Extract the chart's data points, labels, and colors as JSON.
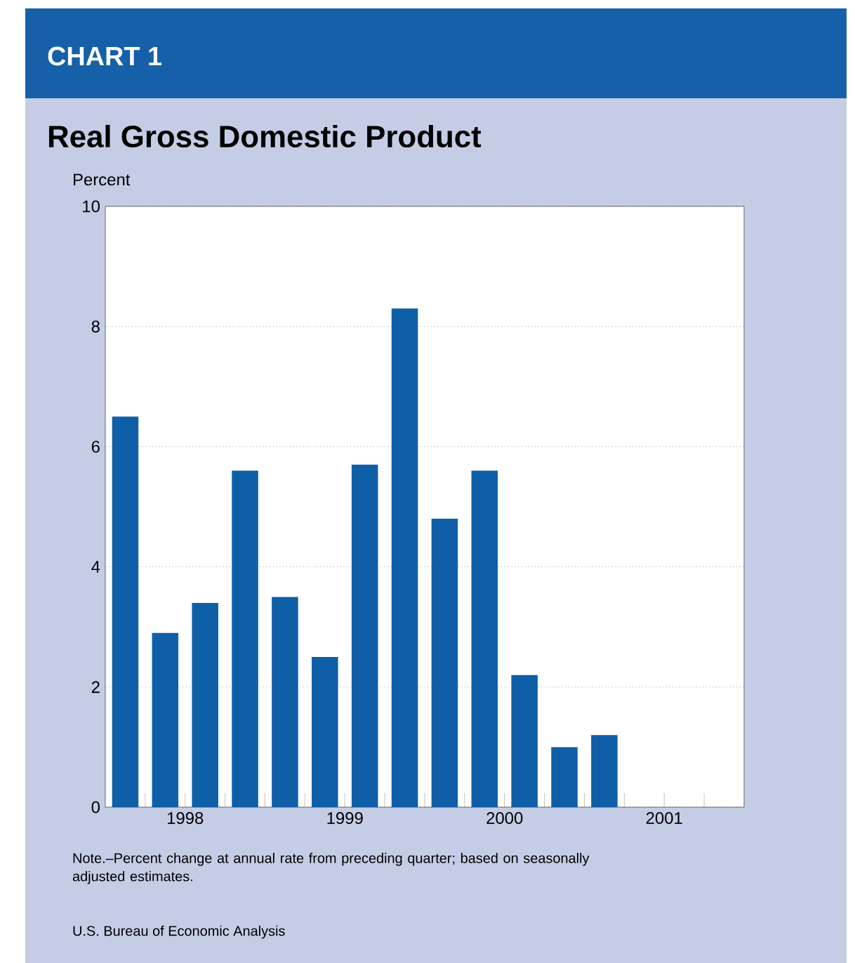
{
  "chart_data": {
    "type": "bar",
    "title": "Real Gross Domestic Product",
    "ylabel": "Percent",
    "annotations": [
      "CHART 1",
      "Note.–Percent change at annual rate from preceding quarter; based on seasonally adjusted estimates.",
      "U.S. Bureau of Economic Analysis"
    ],
    "x": [
      1998.125,
      1998.375,
      1998.625,
      1998.875,
      1999.125,
      1999.375,
      1999.625,
      1999.875,
      2000.125,
      2000.375,
      2000.625,
      2000.875,
      2001.125
    ],
    "values": [
      6.5,
      2.9,
      3.4,
      5.6,
      3.5,
      2.5,
      5.7,
      8.3,
      4.8,
      5.6,
      2.2,
      1.0,
      1.2
    ],
    "color": "#0f5fa8",
    "xlim": [
      1998,
      2002
    ],
    "xticks": [
      {
        "value": 1998.5,
        "label": "1998"
      },
      {
        "value": 1999.5,
        "label": "1999"
      },
      {
        "value": 2000.5,
        "label": "2000"
      },
      {
        "value": 2001.5,
        "label": "2001"
      }
    ],
    "ylim": [
      0,
      10
    ],
    "yticks": [
      0,
      2,
      4,
      6,
      8,
      10
    ],
    "grid": "y",
    "line_style": "dotted"
  }
}
